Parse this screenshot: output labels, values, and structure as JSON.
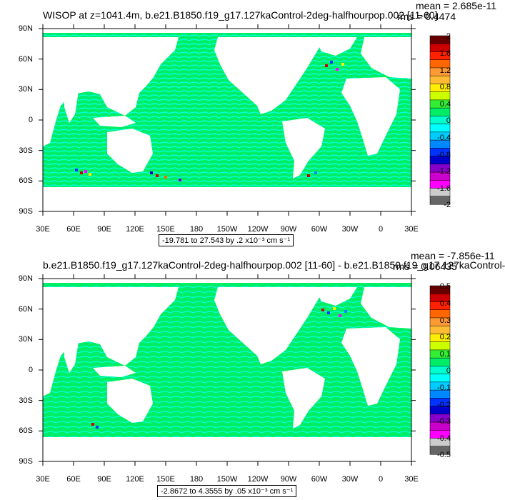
{
  "panels": [
    {
      "title": "WISOP at z=1041.4m, b.e21.B1850.f19_g17.127kaControl-2deg-halfhourpop.002 [11-60]",
      "mean": "mean = 2.685e-11",
      "rms": "rms = 0.4474",
      "range": "-19.781 to 27.543 by .2 x10⁻³ cm s⁻¹",
      "colorbar_labels": [
        "2",
        "1.6",
        "1.2",
        "0.8",
        "0.4",
        "0",
        "-0.4",
        "-0.8",
        "-1.2",
        "-1.6",
        "-2"
      ]
    },
    {
      "title": "b.e21.B1850.f19_g17.127kaControl-2deg-halfhourpop.002 [11-60] - b.e21.B1850.f19_g17.127kaControl-",
      "mean": "mean = -7.856e-11",
      "rms": "rms = 0.06435",
      "range": "-2.8672 to 4.3555 by .05 x10⁻³ cm s⁻¹",
      "colorbar_labels": [
        "0.5",
        "0.4",
        "0.3",
        "0.2",
        "0.1",
        "0",
        "-0.1",
        "-0.2",
        "-0.3",
        "-0.4",
        "-0.5"
      ]
    }
  ],
  "lat_labels": [
    "90N",
    "60N",
    "30N",
    "0",
    "30S",
    "60S",
    "90S"
  ],
  "lon_labels": [
    "30E",
    "60E",
    "90E",
    "120E",
    "150E",
    "180",
    "150W",
    "120W",
    "90W",
    "60W",
    "30W",
    "0",
    "30E"
  ],
  "colors": {
    "ocean_primary": "#00ee66",
    "ocean_secondary": "#00ffdd",
    "land": "#ffffff",
    "palette": [
      "#660000",
      "#cc0000",
      "#ff2200",
      "#ff6600",
      "#ff9933",
      "#ffbb33",
      "#ffee00",
      "#ccff00",
      "#33ee33",
      "#00ee66",
      "#00ffcc",
      "#00ffff",
      "#00ccff",
      "#0088ff",
      "#0033ff",
      "#0000cc",
      "#8800cc",
      "#cc00cc",
      "#ff00ff",
      "#cccccc",
      "#666666"
    ]
  }
}
